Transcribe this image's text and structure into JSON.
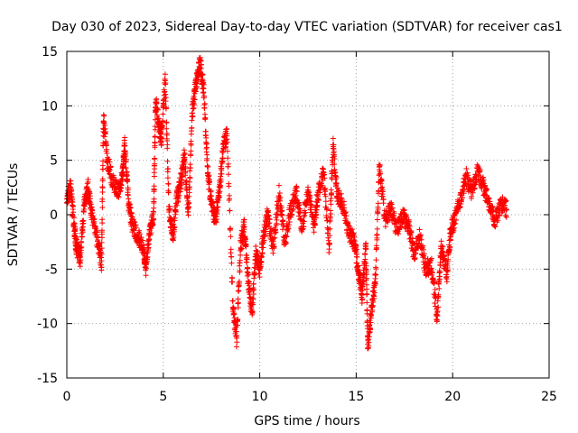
{
  "chart_data": {
    "type": "scatter",
    "title": "Day 030 of 2023, Sidereal Day-to-day VTEC variation (SDTVAR) for receiver cas1",
    "xlabel": "GPS time / hours",
    "ylabel": "SDTVAR / TECUs",
    "xlim": [
      0,
      25
    ],
    "ylim": [
      -15,
      15
    ],
    "xticks": [
      0,
      5,
      10,
      15,
      20,
      25
    ],
    "yticks": [
      -15,
      -10,
      -5,
      0,
      5,
      10,
      15
    ],
    "xtick_labels": [
      "0",
      "5",
      "10",
      "15",
      "20",
      "25"
    ],
    "ytick_labels": [
      "-15",
      "-10",
      "-5",
      "0",
      "5",
      "10",
      "15"
    ],
    "grid": true,
    "marker": "plus",
    "series": [
      {
        "name": "cas1",
        "color": "#ff0000",
        "anchors": [
          [
            0.0,
            1.5
          ],
          [
            0.2,
            2.5
          ],
          [
            0.4,
            -1.5
          ],
          [
            0.5,
            -3.0
          ],
          [
            0.7,
            -4.0
          ],
          [
            0.9,
            1.0
          ],
          [
            1.1,
            2.5
          ],
          [
            1.3,
            0.0
          ],
          [
            1.6,
            -2.5
          ],
          [
            1.8,
            -4.5
          ],
          [
            1.9,
            9.0
          ],
          [
            2.1,
            5.0
          ],
          [
            2.4,
            3.0
          ],
          [
            2.7,
            2.0
          ],
          [
            2.9,
            4.0
          ],
          [
            3.0,
            6.5
          ],
          [
            3.2,
            1.0
          ],
          [
            3.4,
            -1.0
          ],
          [
            3.7,
            -2.0
          ],
          [
            4.0,
            -3.5
          ],
          [
            4.1,
            -5.0
          ],
          [
            4.3,
            -1.5
          ],
          [
            4.5,
            0.0
          ],
          [
            4.6,
            10.5
          ],
          [
            4.8,
            8.0
          ],
          [
            4.9,
            7.0
          ],
          [
            5.1,
            12.5
          ],
          [
            5.3,
            0.5
          ],
          [
            5.5,
            -2.0
          ],
          [
            5.7,
            1.5
          ],
          [
            5.9,
            3.0
          ],
          [
            6.1,
            5.5
          ],
          [
            6.3,
            0.0
          ],
          [
            6.5,
            9.5
          ],
          [
            6.7,
            12.0
          ],
          [
            6.9,
            14.0
          ],
          [
            7.1,
            11.5
          ],
          [
            7.3,
            4.0
          ],
          [
            7.5,
            1.0
          ],
          [
            7.7,
            -0.5
          ],
          [
            7.9,
            2.0
          ],
          [
            8.1,
            6.0
          ],
          [
            8.3,
            7.5
          ],
          [
            8.6,
            -8.0
          ],
          [
            8.8,
            -11.5
          ],
          [
            9.0,
            -3.0
          ],
          [
            9.2,
            -1.0
          ],
          [
            9.4,
            -6.0
          ],
          [
            9.6,
            -9.0
          ],
          [
            9.8,
            -3.5
          ],
          [
            10.0,
            -5.0
          ],
          [
            10.2,
            -2.0
          ],
          [
            10.4,
            0.0
          ],
          [
            10.7,
            -3.0
          ],
          [
            11.0,
            2.0
          ],
          [
            11.3,
            -2.5
          ],
          [
            11.6,
            0.5
          ],
          [
            11.9,
            2.0
          ],
          [
            12.2,
            -1.5
          ],
          [
            12.5,
            2.5
          ],
          [
            12.8,
            -1.0
          ],
          [
            13.0,
            1.5
          ],
          [
            13.3,
            4.0
          ],
          [
            13.6,
            -3.0
          ],
          [
            13.8,
            6.5
          ],
          [
            14.0,
            2.0
          ],
          [
            14.3,
            1.0
          ],
          [
            14.6,
            -1.5
          ],
          [
            14.9,
            -2.5
          ],
          [
            15.1,
            -5.0
          ],
          [
            15.3,
            -7.5
          ],
          [
            15.5,
            -3.0
          ],
          [
            15.6,
            -12.5
          ],
          [
            15.8,
            -8.5
          ],
          [
            16.0,
            -6.0
          ],
          [
            16.2,
            4.5
          ],
          [
            16.5,
            -0.5
          ],
          [
            16.8,
            0.5
          ],
          [
            17.1,
            -1.5
          ],
          [
            17.4,
            0.0
          ],
          [
            17.7,
            -1.0
          ],
          [
            18.0,
            -3.5
          ],
          [
            18.3,
            -2.0
          ],
          [
            18.6,
            -5.0
          ],
          [
            18.9,
            -4.5
          ],
          [
            19.2,
            -9.5
          ],
          [
            19.4,
            -3.0
          ],
          [
            19.7,
            -5.5
          ],
          [
            19.9,
            -1.5
          ],
          [
            20.1,
            -0.5
          ],
          [
            20.4,
            1.5
          ],
          [
            20.7,
            3.5
          ],
          [
            21.0,
            2.0
          ],
          [
            21.3,
            4.0
          ],
          [
            21.6,
            2.5
          ],
          [
            21.9,
            1.0
          ],
          [
            22.2,
            -0.5
          ],
          [
            22.5,
            1.0
          ],
          [
            22.8,
            0.5
          ]
        ]
      }
    ]
  }
}
